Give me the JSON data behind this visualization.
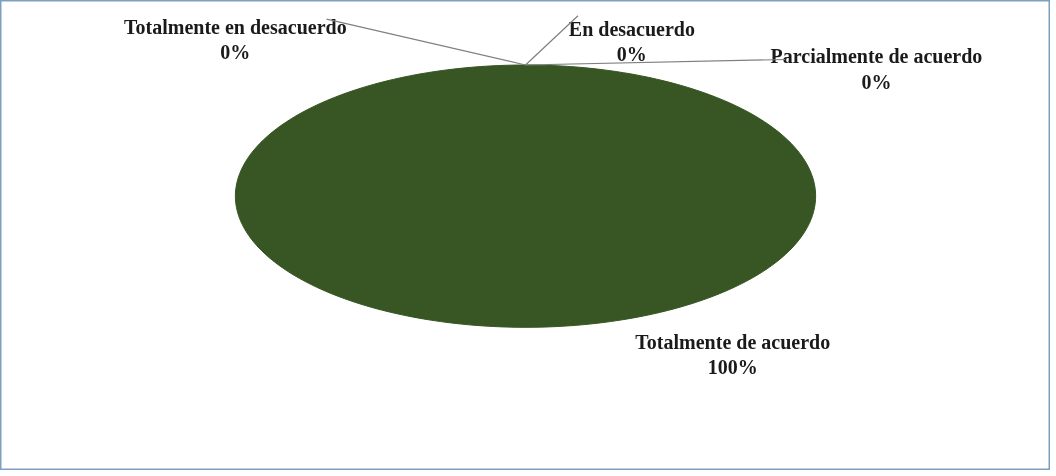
{
  "chart_data": {
    "type": "pie",
    "categories": [
      "Totalmente en desacuerdo",
      "En desacuerdo",
      "Parcialmente de acuerdo",
      "Totalmente de acuerdo"
    ],
    "values": [
      0,
      0,
      0,
      100
    ],
    "value_labels": [
      "0%",
      "0%",
      "0%",
      "100%"
    ],
    "colors": [
      "#4f81bd",
      "#c0504d",
      "#9bbb59",
      "#375623"
    ]
  }
}
